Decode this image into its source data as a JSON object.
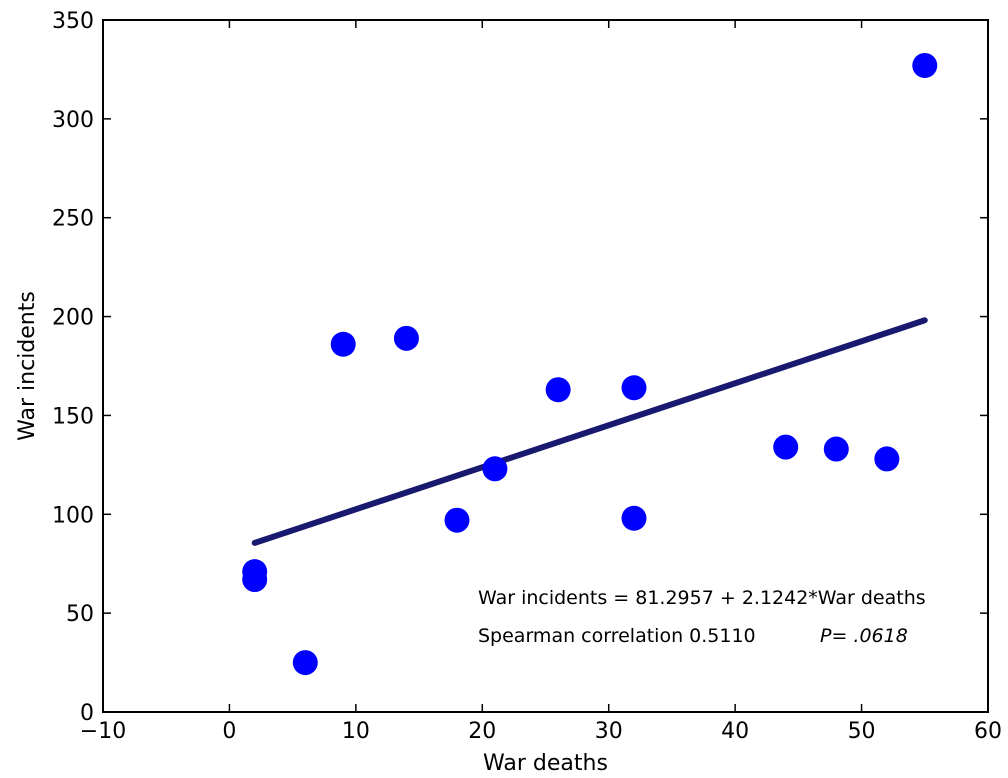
{
  "chart_data": {
    "type": "scatter",
    "title": "",
    "xlabel": "War deaths",
    "ylabel": "War incidents",
    "xlim": [
      -10,
      60
    ],
    "ylim": [
      0,
      350
    ],
    "xticks": [
      -10,
      0,
      10,
      20,
      30,
      40,
      50,
      60
    ],
    "yticks": [
      0,
      50,
      100,
      150,
      200,
      250,
      300,
      350
    ],
    "xtick_labels": [
      "−10",
      "0",
      "10",
      "20",
      "30",
      "40",
      "50",
      "60"
    ],
    "ytick_labels": [
      "0",
      "50",
      "100",
      "150",
      "200",
      "250",
      "300",
      "350"
    ],
    "grid": false,
    "point_color": "#0000ff",
    "line_color": "#191970",
    "points": [
      {
        "x": 2,
        "y": 71
      },
      {
        "x": 2,
        "y": 67
      },
      {
        "x": 6,
        "y": 25
      },
      {
        "x": 9,
        "y": 186
      },
      {
        "x": 14,
        "y": 189
      },
      {
        "x": 18,
        "y": 97
      },
      {
        "x": 21,
        "y": 123
      },
      {
        "x": 26,
        "y": 163
      },
      {
        "x": 32,
        "y": 164
      },
      {
        "x": 32,
        "y": 98
      },
      {
        "x": 44,
        "y": 134
      },
      {
        "x": 48,
        "y": 133
      },
      {
        "x": 52,
        "y": 128
      },
      {
        "x": 55,
        "y": 327
      }
    ],
    "regression": {
      "intercept": 81.2957,
      "slope": 2.1242,
      "x_start": 2,
      "x_end": 55
    },
    "annotations": {
      "equation": "War incidents = 81.2957 + 2.1242*War deaths",
      "correlation": "Spearman correlation 0.5110",
      "p_value": "P= .0618"
    }
  }
}
